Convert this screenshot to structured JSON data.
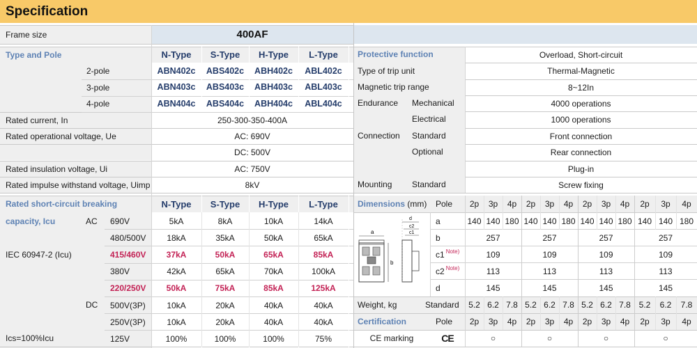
{
  "title": "Specification",
  "frame": {
    "label": "Frame size",
    "value": "400AF"
  },
  "type_pole": {
    "label": "Type and Pole",
    "types": [
      "N-Type",
      "S-Type",
      "H-Type",
      "L-Type"
    ],
    "rows": [
      {
        "pole": "2-pole",
        "models": [
          "ABN402c",
          "ABS402c",
          "ABH402c",
          "ABL402c"
        ]
      },
      {
        "pole": "3-pole",
        "models": [
          "ABN403c",
          "ABS403c",
          "ABH403c",
          "ABL403c"
        ]
      },
      {
        "pole": "4-pole",
        "models": [
          "ABN404c",
          "ABS404c",
          "ABH404c",
          "ABL404c"
        ]
      }
    ]
  },
  "ratings": [
    {
      "label": "Rated current, In",
      "value": "250-300-350-400A"
    },
    {
      "label": "Rated operational voltage, Ue",
      "value": "AC: 690V",
      "value2": "DC: 500V"
    },
    {
      "label": "Rated insulation voltage, Ui",
      "value": "AC: 750V"
    },
    {
      "label": "Rated impulse withstand voltage, Uimp",
      "value": "8kV"
    }
  ],
  "breaking": {
    "label1": "Rated short-circuit breaking",
    "label2": "capacity, Icu",
    "ac": "AC",
    "dc": "DC",
    "std": "IEC 60947-2 (Icu)",
    "types": [
      "N-Type",
      "S-Type",
      "H-Type",
      "L-Type"
    ],
    "rows": [
      {
        "v": "690V",
        "vals": [
          "5kA",
          "8kA",
          "10kA",
          "14kA"
        ],
        "hl": false
      },
      {
        "v": "480/500V",
        "vals": [
          "18kA",
          "35kA",
          "50kA",
          "65kA"
        ],
        "hl": false
      },
      {
        "v": "415/460V",
        "vals": [
          "37kA",
          "50kA",
          "65kA",
          "85kA"
        ],
        "hl": true
      },
      {
        "v": "380V",
        "vals": [
          "42kA",
          "65kA",
          "70kA",
          "100kA"
        ],
        "hl": false
      },
      {
        "v": "220/250V",
        "vals": [
          "50kA",
          "75kA",
          "85kA",
          "125kA"
        ],
        "hl": true
      },
      {
        "v": "500V(3P)",
        "vals": [
          "10kA",
          "20kA",
          "40kA",
          "40kA"
        ],
        "hl": false
      },
      {
        "v": "250V(3P)",
        "vals": [
          "10kA",
          "20kA",
          "40kA",
          "40kA"
        ],
        "hl": false
      },
      {
        "v": "125V",
        "vals": [
          "100%",
          "100%",
          "100%",
          "75%"
        ],
        "hl": false
      }
    ],
    "ics": "Ics=100%Icu"
  },
  "right": {
    "protective": {
      "label": "Protective function",
      "value": "Overload, Short-circuit"
    },
    "trip_unit": {
      "label": "Type of trip unit",
      "value": "Thermal-Magnetic"
    },
    "mag_range": {
      "label": "Magnetic trip range",
      "value": "8~12In"
    },
    "endurance": {
      "label": "Endurance",
      "mech": "Mechanical",
      "mech_v": "4000 operations",
      "elec": "Electrical",
      "elec_v": "1000 operations"
    },
    "connection": {
      "label": "Connection",
      "std": "Standard",
      "std_v": "Front connection",
      "opt": "Optional",
      "opt_v": "Rear connection",
      "plug": "Plug-in"
    },
    "mounting": {
      "label": "Mounting",
      "std": "Standard",
      "value": "Screw fixing"
    }
  },
  "dimensions": {
    "label": "Dimensions",
    "unit": "(mm)",
    "pole": "Pole",
    "poles": [
      "2p",
      "3p",
      "4p"
    ],
    "diagram": {
      "a": "a",
      "b": "b",
      "c1": "c1",
      "c2": "c2",
      "d": "d"
    },
    "a_label": "a",
    "a_vals": [
      "140",
      "140",
      "180"
    ],
    "b_label": "b",
    "b": "257",
    "c1_label": "c1",
    "c1": "109",
    "c2_label": "c2",
    "c2": "113",
    "d_label": "d",
    "d": "145",
    "note": "Note)"
  },
  "weight": {
    "label": "Weight, kg",
    "std": "Standard",
    "vals": [
      "5.2",
      "6.2",
      "7.8"
    ]
  },
  "cert": {
    "label": "Certification",
    "pole": "Pole",
    "poles": [
      "2p",
      "3p",
      "4p"
    ],
    "ce_label": "CE marking",
    "ce_mark": "CE",
    "mark": "○"
  },
  "colors": {
    "title_bar": "#f8c968",
    "gray": "#efefef",
    "blue": "#dde6ef",
    "section": "#5e82b4",
    "type_hdr": "#253d6b",
    "highlight": "#c32255"
  }
}
